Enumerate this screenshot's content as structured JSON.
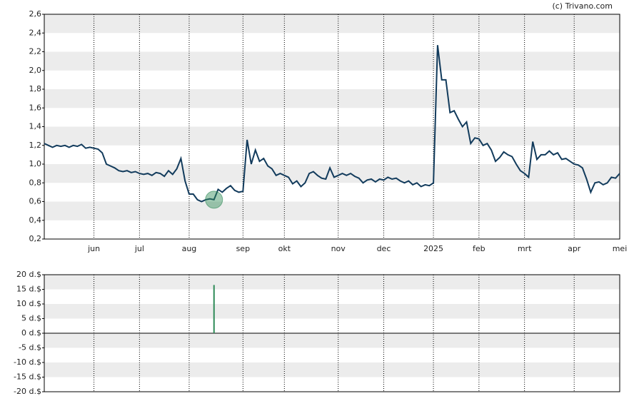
{
  "watermark": "(c) Trivano.com",
  "chart_data": [
    {
      "type": "line",
      "categories": [
        null,
        null,
        null,
        null,
        null,
        null,
        null,
        null,
        null,
        null,
        null,
        null,
        "jun",
        null,
        null,
        null,
        null,
        null,
        null,
        null,
        null,
        null,
        null,
        "jul",
        null,
        null,
        null,
        null,
        null,
        null,
        null,
        null,
        null,
        null,
        null,
        "aug",
        null,
        null,
        null,
        null,
        null,
        null,
        null,
        null,
        null,
        null,
        null,
        null,
        "sep",
        null,
        null,
        null,
        null,
        null,
        null,
        null,
        null,
        null,
        "okt",
        null,
        null,
        null,
        null,
        null,
        null,
        null,
        null,
        null,
        null,
        null,
        null,
        "nov",
        null,
        null,
        null,
        null,
        null,
        null,
        null,
        null,
        null,
        null,
        "dec",
        null,
        null,
        null,
        null,
        null,
        null,
        null,
        null,
        null,
        null,
        null,
        "2025",
        null,
        null,
        null,
        null,
        null,
        null,
        null,
        null,
        null,
        null,
        "feb",
        null,
        null,
        null,
        null,
        null,
        null,
        null,
        null,
        null,
        null,
        "mrt",
        null,
        null,
        null,
        null,
        null,
        null,
        null,
        null,
        null,
        null,
        null,
        "apr",
        null,
        null,
        null,
        null,
        null,
        null,
        null,
        null,
        null,
        null,
        "mei"
      ],
      "series": [
        {
          "color": "#123b5c",
          "values": [
            1.22,
            1.2,
            1.18,
            1.2,
            1.19,
            1.2,
            1.18,
            1.2,
            1.19,
            1.21,
            1.17,
            1.18,
            1.17,
            1.16,
            1.12,
            1.0,
            0.98,
            0.96,
            0.93,
            0.92,
            0.93,
            0.91,
            0.92,
            0.9,
            0.89,
            0.9,
            0.88,
            0.91,
            0.9,
            0.87,
            0.93,
            0.89,
            0.95,
            1.06,
            0.82,
            0.68,
            0.68,
            0.62,
            0.6,
            0.62,
            0.63,
            0.62,
            0.73,
            0.7,
            0.74,
            0.77,
            0.72,
            0.7,
            0.71,
            1.26,
            1.0,
            1.15,
            1.03,
            1.06,
            0.98,
            0.95,
            0.88,
            0.9,
            0.88,
            0.86,
            0.79,
            0.82,
            0.76,
            0.8,
            0.9,
            0.92,
            0.88,
            0.85,
            0.84,
            0.96,
            0.86,
            0.88,
            0.9,
            0.88,
            0.9,
            0.87,
            0.85,
            0.8,
            0.83,
            0.84,
            0.81,
            0.84,
            0.83,
            0.86,
            0.84,
            0.85,
            0.82,
            0.8,
            0.82,
            0.78,
            0.8,
            0.76,
            0.78,
            0.77,
            0.8,
            2.27,
            1.9,
            1.9,
            1.55,
            1.57,
            1.48,
            1.4,
            1.45,
            1.22,
            1.28,
            1.27,
            1.2,
            1.22,
            1.15,
            1.03,
            1.07,
            1.13,
            1.1,
            1.08,
            1.0,
            0.93,
            0.9,
            0.86,
            1.24,
            1.05,
            1.1,
            1.1,
            1.14,
            1.1,
            1.12,
            1.05,
            1.06,
            1.03,
            1.0,
            0.99,
            0.96,
            0.84,
            0.7,
            0.8,
            0.81,
            0.78,
            0.8,
            0.86,
            0.85,
            0.9
          ]
        }
      ],
      "ylim": [
        0.2,
        2.6
      ],
      "yticks": [
        {
          "value": 0.2,
          "label": "0,2"
        },
        {
          "value": 0.4,
          "label": "0,4"
        },
        {
          "value": 0.6,
          "label": "0,6"
        },
        {
          "value": 0.8,
          "label": "0,8"
        },
        {
          "value": 1.0,
          "label": "1,0"
        },
        {
          "value": 1.2,
          "label": "1,2"
        },
        {
          "value": 1.4,
          "label": "1,4"
        },
        {
          "value": 1.6,
          "label": "1,6"
        },
        {
          "value": 1.8,
          "label": "1,8"
        },
        {
          "value": 2.0,
          "label": "2,0"
        },
        {
          "value": 2.2,
          "label": "2,2"
        },
        {
          "value": 2.4,
          "label": "2,4"
        },
        {
          "value": 2.6,
          "label": "2,6"
        }
      ],
      "grid": true
    },
    {
      "type": "bar",
      "color": "#2e8b57",
      "values": [
        null,
        null,
        null,
        null,
        null,
        null,
        null,
        null,
        null,
        null,
        null,
        null,
        null,
        null,
        null,
        null,
        null,
        null,
        null,
        null,
        null,
        null,
        null,
        null,
        null,
        null,
        null,
        null,
        null,
        null,
        null,
        null,
        null,
        null,
        null,
        null,
        null,
        null,
        null,
        null,
        null,
        16.5,
        null,
        null,
        null,
        null,
        null,
        null,
        null,
        null,
        null,
        null,
        null,
        null,
        null,
        null,
        null,
        null,
        null,
        null,
        null,
        null,
        null,
        null,
        null,
        null,
        null,
        null,
        null,
        null,
        null,
        null,
        null,
        null,
        null,
        null,
        null,
        null,
        null,
        null,
        null,
        null,
        null,
        null,
        null,
        null,
        null,
        null,
        null,
        null,
        null,
        null,
        null,
        null,
        null,
        null,
        null,
        null,
        null,
        null,
        null,
        null,
        null,
        null,
        null,
        null,
        null,
        null,
        null,
        null,
        null,
        null,
        null,
        null,
        null,
        null,
        null,
        null,
        null,
        null,
        null,
        null,
        null,
        null,
        null,
        null,
        null,
        null,
        null,
        null,
        null,
        null,
        null,
        null,
        null,
        null,
        null,
        null,
        null,
        null
      ],
      "ylim": [
        -20,
        20
      ],
      "yticks": [
        {
          "value": -20,
          "label": "-20 d.$"
        },
        {
          "value": -15,
          "label": "-15 d.$"
        },
        {
          "value": -10,
          "label": "-10 d.$"
        },
        {
          "value": -5,
          "label": "-5 d.$"
        },
        {
          "value": 0,
          "label": "0 d.$"
        },
        {
          "value": 5,
          "label": "5 d.$"
        },
        {
          "value": 10,
          "label": "10 d.$"
        },
        {
          "value": 15,
          "label": "15 d.$"
        },
        {
          "value": 20,
          "label": "20 d.$"
        }
      ],
      "grid": true
    }
  ]
}
